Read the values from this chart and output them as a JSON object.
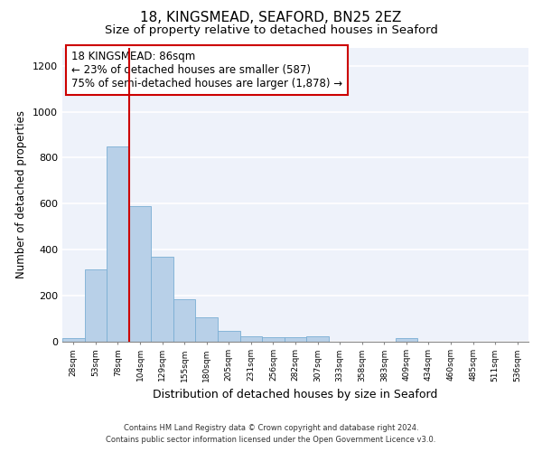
{
  "title": "18, KINGSMEAD, SEAFORD, BN25 2EZ",
  "subtitle": "Size of property relative to detached houses in Seaford",
  "xlabel": "Distribution of detached houses by size in Seaford",
  "ylabel": "Number of detached properties",
  "bar_categories": [
    "28sqm",
    "53sqm",
    "78sqm",
    "104sqm",
    "129sqm",
    "155sqm",
    "180sqm",
    "205sqm",
    "231sqm",
    "256sqm",
    "282sqm",
    "307sqm",
    "333sqm",
    "358sqm",
    "383sqm",
    "409sqm",
    "434sqm",
    "460sqm",
    "485sqm",
    "511sqm",
    "536sqm"
  ],
  "bar_values": [
    15,
    315,
    850,
    590,
    370,
    185,
    105,
    45,
    20,
    18,
    18,
    20,
    0,
    0,
    0,
    12,
    0,
    0,
    0,
    0,
    0
  ],
  "bar_color": "#b8d0e8",
  "bar_edgecolor": "#7aaed4",
  "ylim": [
    0,
    1280
  ],
  "yticks": [
    0,
    200,
    400,
    600,
    800,
    1000,
    1200
  ],
  "vline_x_idx": 2,
  "vline_color": "#cc0000",
  "annotation_line1": "18 KINGSMEAD: 86sqm",
  "annotation_line2": "← 23% of detached houses are smaller (587)",
  "annotation_line3": "75% of semi-detached houses are larger (1,878) →",
  "annotation_box_color": "#cc0000",
  "annotation_fontsize": 8.5,
  "footnote1": "Contains HM Land Registry data © Crown copyright and database right 2024.",
  "footnote2": "Contains public sector information licensed under the Open Government Licence v3.0.",
  "background_color": "#eef2fa",
  "title_fontsize": 11,
  "subtitle_fontsize": 9.5,
  "xlabel_fontsize": 9,
  "ylabel_fontsize": 8.5
}
